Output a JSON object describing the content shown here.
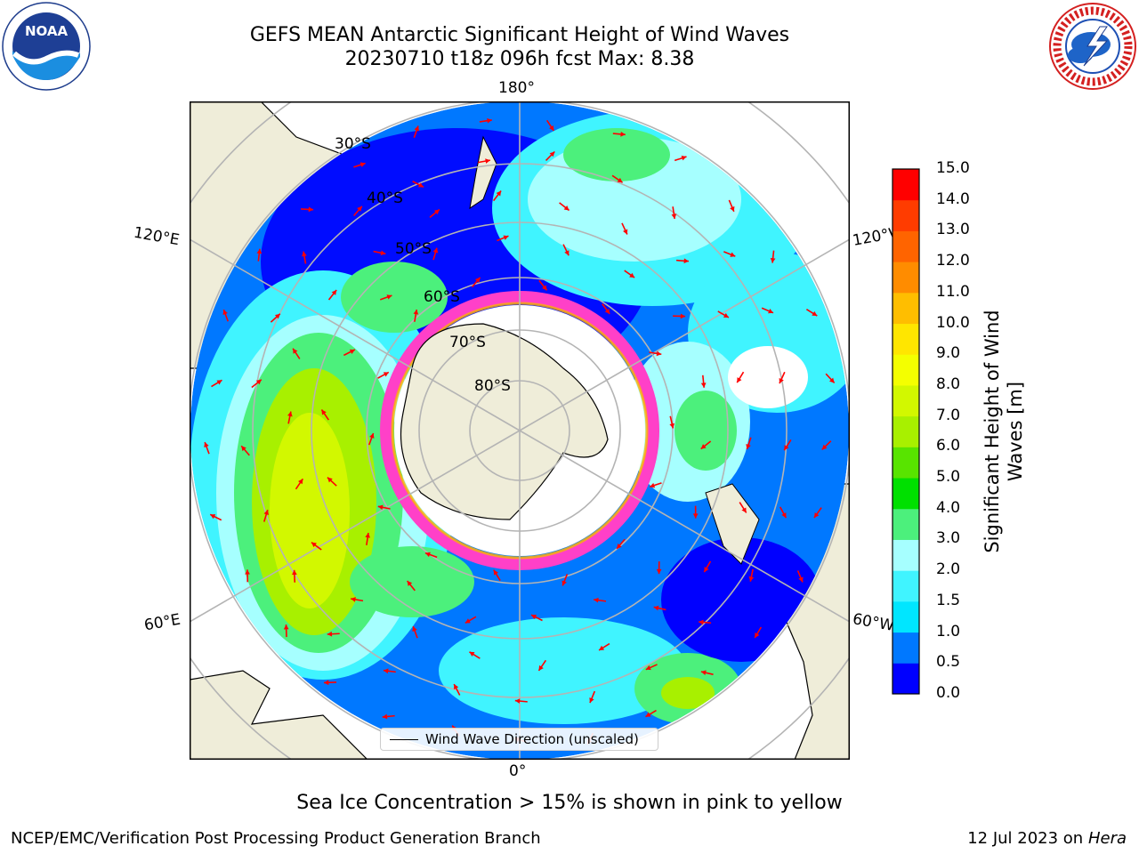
{
  "title_line1": "GEFS MEAN Antarctic Significant Height of Wind Waves",
  "title_line2": "20230710 t18z 096h fcst   Max: 8.38",
  "logos": {
    "left": "noaa-logo",
    "right": "nws-logo",
    "noaa_text": "NOAA",
    "noaa_ring_text": "NATIONAL OCEANIC AND ATMOSPHERIC ADMINISTRATION · U.S. DEPARTMENT OF COMMERCE",
    "nws_ring_text": "NATIONAL WEATHER SERVICE"
  },
  "map": {
    "projection": "south-polar-stereographic",
    "lon_labels": {
      "top": "180°",
      "upper_left": "120°E",
      "upper_right": "120°W",
      "lower_left": "60°E",
      "lower_right": "60°W",
      "bottom": "0°"
    },
    "lat_labels": [
      "30°S",
      "40°S",
      "50°S",
      "60°S",
      "70°S",
      "80°S"
    ],
    "legend": "Wind Wave Direction (unscaled)",
    "colors": {
      "land": "#efedd9",
      "coast": "#000000",
      "gridline": "#b4b4b4",
      "arrow": "#ff0000",
      "sea_ice": "#ff40c8"
    }
  },
  "colorbar": {
    "label": "Significant Height of Wind Waves [m]",
    "ticks": [
      "0.0",
      "0.5",
      "1.0",
      "1.5",
      "2.0",
      "3.0",
      "4.0",
      "5.0",
      "6.0",
      "7.0",
      "8.0",
      "9.0",
      "10.0",
      "11.0",
      "12.0",
      "13.0",
      "14.0",
      "15.0"
    ],
    "colors": [
      "#0000ff",
      "#0078ff",
      "#00e6ff",
      "#40f4ff",
      "#a6ffff",
      "#4cf07c",
      "#00e000",
      "#58e400",
      "#a8f000",
      "#d2f800",
      "#f4ff00",
      "#ffe600",
      "#ffbe00",
      "#ff8c00",
      "#ff6400",
      "#ff3c00",
      "#ff0000"
    ]
  },
  "sea_ice_note": "Sea Ice Concentration > 15% is shown in pink to yellow",
  "footer": {
    "left": "NCEP/EMC/Verification Post Processing Product Generation Branch",
    "date": "12 Jul 2023 on",
    "system": "Hera"
  }
}
